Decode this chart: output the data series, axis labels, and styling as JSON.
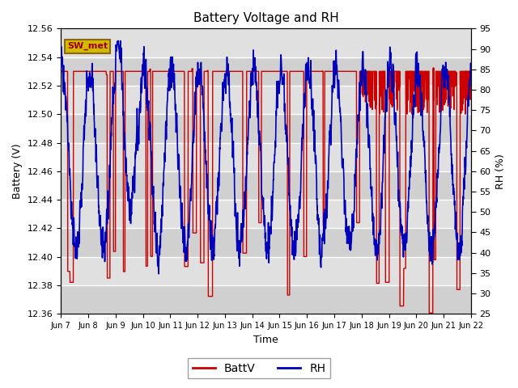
{
  "title": "Battery Voltage and RH",
  "xlabel": "Time",
  "ylabel_left": "Battery (V)",
  "ylabel_right": "RH (%)",
  "annotation_text": "SW_met",
  "annotation_bg": "#d4b800",
  "annotation_border": "#8b6914",
  "ylim_left": [
    12.36,
    12.56
  ],
  "ylim_right": [
    25,
    95
  ],
  "yticks_left": [
    12.36,
    12.38,
    12.4,
    12.42,
    12.44,
    12.46,
    12.48,
    12.5,
    12.52,
    12.54,
    12.56
  ],
  "yticks_right": [
    25,
    30,
    35,
    40,
    45,
    50,
    55,
    60,
    65,
    70,
    75,
    80,
    85,
    90,
    95
  ],
  "xtick_labels": [
    "Jun 7",
    "Jun 8",
    "Jun 9",
    "Jun 10",
    "Jun 11",
    "Jun 12",
    "Jun 13",
    "Jun 14",
    "Jun 15",
    "Jun 16",
    "Jun 17",
    "Jun 18",
    "Jun 19",
    "Jun 20",
    "Jun 21",
    "Jun 22"
  ],
  "legend_batt": "BattV",
  "legend_rh": "RH",
  "batt_color": "#cc0000",
  "rh_color": "#0000bb",
  "grid_color": "#bbbbbb",
  "plot_bg_light": "#dcdcdc",
  "plot_bg_dark": "#c8c8c8"
}
